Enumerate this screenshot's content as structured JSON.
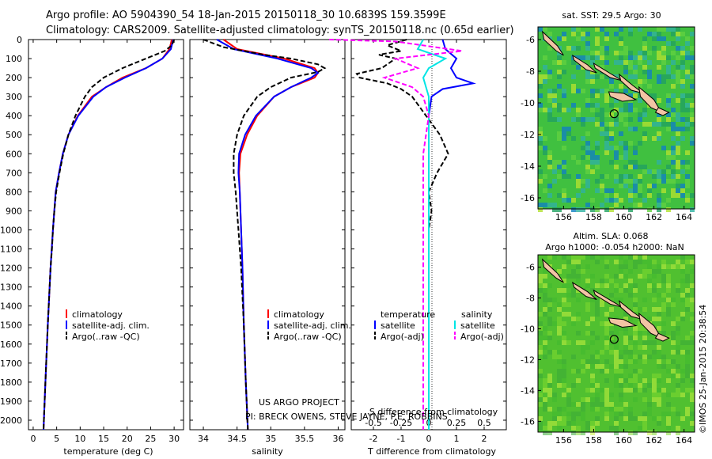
{
  "header": {
    "line1": "Argo profile: AO 5904390_54 18-Jan-2015 20150118_30 10.6839S 159.3599E",
    "line2": "Climatology: CARS2009. Satellite-adjusted climatology: synTS_20150118.nc (0.65d earlier)"
  },
  "colors": {
    "climatology": "#ff0000",
    "satellite": "#0000ff",
    "argo": "#000000",
    "sal_satellite": "#00e5e5",
    "sal_argo": "#ff00ff",
    "land": "#f2c4a4",
    "ocean": "#4cc24c"
  },
  "depth_ticks": [
    "0",
    "100",
    "200",
    "300",
    "400",
    "500",
    "600",
    "700",
    "800",
    "900",
    "1000",
    "1100",
    "1200",
    "1300",
    "1400",
    "1500",
    "1600",
    "1700",
    "1800",
    "1900",
    "2000"
  ],
  "legend_profile": {
    "climatology": "climatology",
    "satellite": "satellite-adj. clim.",
    "argo": "Argo(..raw -QC)"
  },
  "legend_diff": {
    "temperature": "temperature",
    "salinity": "salinity",
    "t_satellite": "satellite",
    "t_argo": "Argo(-adj)",
    "s_satellite": "satellite",
    "s_argo": "Argo(-adj)"
  },
  "project": {
    "line1": "US ARGO PROJECT",
    "line2": "PI: BRECK OWENS, STEVE JAYNE, P.E. ROBBINS"
  },
  "maps": {
    "sst_title": "sat. SST: 29.5 Argo: 30",
    "sla_title1": "Altim. SLA: 0.068",
    "sla_title2": "Argo h1000: -0.054 h2000: NaN",
    "lat_ticks": [
      "-6",
      "-8",
      "-10",
      "-12",
      "-14",
      "-16"
    ],
    "lon_ticks": [
      "156",
      "158",
      "160",
      "162",
      "164"
    ],
    "float_position": {
      "lon": 159.3599,
      "lat": -10.6839
    }
  },
  "credit": "©IMOS 25-Jan-2015 20:38:54",
  "chart_data": [
    {
      "type": "line",
      "xlabel": "temperature (deg C)",
      "ylabel": "",
      "xlim": [
        -1,
        32
      ],
      "ylim": [
        2050,
        0
      ],
      "xticks": [
        "0",
        "5",
        "10",
        "15",
        "20",
        "25",
        "30"
      ],
      "series": [
        {
          "name": "climatology",
          "depth": [
            0,
            50,
            100,
            150,
            200,
            250,
            300,
            400,
            500,
            600,
            700,
            800,
            1000,
            1200,
            1500,
            1800,
            2050
          ],
          "values": [
            29.5,
            29,
            27.5,
            24,
            19,
            15.5,
            12.5,
            9.5,
            7.5,
            6.3,
            5.5,
            4.8,
            4.2,
            3.7,
            3.1,
            2.6,
            2.2
          ]
        },
        {
          "name": "satellite-adj. clim.",
          "depth": [
            0,
            50,
            100,
            150,
            200,
            250,
            300,
            400,
            500,
            600,
            700,
            800,
            1000,
            1200,
            1500,
            1800,
            2050
          ],
          "values": [
            29.8,
            29.3,
            27.5,
            24,
            19.5,
            15.5,
            12.8,
            9.6,
            7.5,
            6.3,
            5.5,
            4.8,
            4.2,
            3.7,
            3.1,
            2.6,
            2.2
          ]
        },
        {
          "name": "Argo(..raw -QC)",
          "depth": [
            0,
            30,
            60,
            100,
            150,
            200,
            250,
            300,
            350,
            400,
            500,
            600,
            700,
            800,
            900,
            1000,
            1100,
            1200,
            1500,
            1800,
            2050
          ],
          "values": [
            30,
            29.5,
            28,
            24,
            19,
            15,
            12.5,
            11,
            10,
            9,
            7.5,
            6.4,
            5.6,
            4.9,
            4.5,
            4.2,
            4.0,
            3.7,
            3.1,
            2.6,
            2.2
          ]
        }
      ]
    },
    {
      "type": "line",
      "xlabel": "salinity",
      "ylabel": "",
      "xlim": [
        33.8,
        36.1
      ],
      "ylim": [
        2050,
        0
      ],
      "xticks": [
        "34",
        "34.5",
        "35",
        "35.5",
        "36"
      ],
      "series": [
        {
          "name": "climatology",
          "depth": [
            0,
            50,
            100,
            150,
            175,
            200,
            250,
            300,
            400,
            500,
            600,
            700,
            800,
            1000,
            1200,
            1500,
            1800,
            2050
          ],
          "values": [
            34.3,
            34.5,
            35.2,
            35.65,
            35.7,
            35.65,
            35.3,
            35.05,
            34.8,
            34.65,
            34.55,
            34.53,
            34.54,
            34.56,
            34.58,
            34.6,
            34.63,
            34.66
          ]
        },
        {
          "name": "satellite-adj. clim.",
          "depth": [
            0,
            50,
            100,
            150,
            175,
            200,
            250,
            300,
            400,
            500,
            600,
            700,
            800,
            1000,
            1200,
            1500,
            1800,
            2050
          ],
          "values": [
            34.2,
            34.45,
            35.1,
            35.6,
            35.7,
            35.6,
            35.3,
            35.05,
            34.78,
            34.62,
            34.53,
            34.52,
            34.54,
            34.56,
            34.58,
            34.6,
            34.63,
            34.66
          ]
        },
        {
          "name": "Argo(..raw -QC)",
          "depth": [
            0,
            40,
            80,
            100,
            130,
            150,
            170,
            200,
            250,
            300,
            400,
            500,
            600,
            700,
            800,
            1000,
            1200,
            1500,
            1800,
            2050
          ],
          "values": [
            34.0,
            34.3,
            34.9,
            35.3,
            35.7,
            35.8,
            35.7,
            35.3,
            35.0,
            34.8,
            34.6,
            34.5,
            34.45,
            34.45,
            34.48,
            34.52,
            34.56,
            34.6,
            34.63,
            34.66
          ]
        }
      ]
    },
    {
      "type": "line",
      "xlabel": "T difference from climatology",
      "ylabel": "",
      "xlim": [
        -2.8,
        2.8
      ],
      "ylim": [
        2050,
        0
      ],
      "xticks": [
        "-2",
        "-1",
        "0",
        "1",
        "2"
      ],
      "second_axis": {
        "label": "S difference from climatology",
        "ticks": [
          "-0.5",
          "-0.25",
          "0",
          "0.25",
          "0.5"
        ]
      },
      "series": [
        {
          "name": "temperature satellite",
          "depth": [
            0,
            50,
            100,
            150,
            200,
            230,
            260,
            300,
            400,
            600,
            1000,
            1500,
            2050
          ],
          "values": [
            0.5,
            0.6,
            1.0,
            0.8,
            1.0,
            1.6,
            0.5,
            0.1,
            0.0,
            0.0,
            0.0,
            0.0,
            0.0
          ]
        },
        {
          "name": "temperature Argo(-adj)",
          "depth": [
            0,
            30,
            60,
            80,
            100,
            150,
            180,
            200,
            230,
            260,
            300,
            400,
            500,
            600,
            700,
            800,
            900,
            1000,
            1500,
            2050
          ],
          "values": [
            -0.8,
            -1.5,
            -1.0,
            -1.8,
            -1.2,
            -1.7,
            -2.6,
            -2.5,
            -1.5,
            -1.0,
            -0.6,
            -0.1,
            0.4,
            0.7,
            0.3,
            0.0,
            0.1,
            0.0,
            0.0,
            0.0
          ]
        },
        {
          "name": "salinity satellite",
          "depth": [
            0,
            50,
            100,
            150,
            200,
            300,
            400,
            600,
            1000,
            1500,
            2050
          ],
          "values": [
            -0.05,
            -0.1,
            0.15,
            0.0,
            -0.05,
            0.0,
            0.0,
            0.0,
            0.0,
            0.0,
            0.0
          ]
        },
        {
          "name": "salinity Argo(-adj)",
          "depth": [
            0,
            10,
            60,
            100,
            150,
            200,
            250,
            300,
            400,
            600,
            1000,
            1500,
            2050
          ],
          "values": [
            -0.9,
            -0.3,
            0.3,
            -0.3,
            -0.1,
            -0.4,
            -0.15,
            -0.05,
            0.0,
            -0.05,
            -0.05,
            -0.05,
            -0.05
          ]
        }
      ]
    }
  ]
}
